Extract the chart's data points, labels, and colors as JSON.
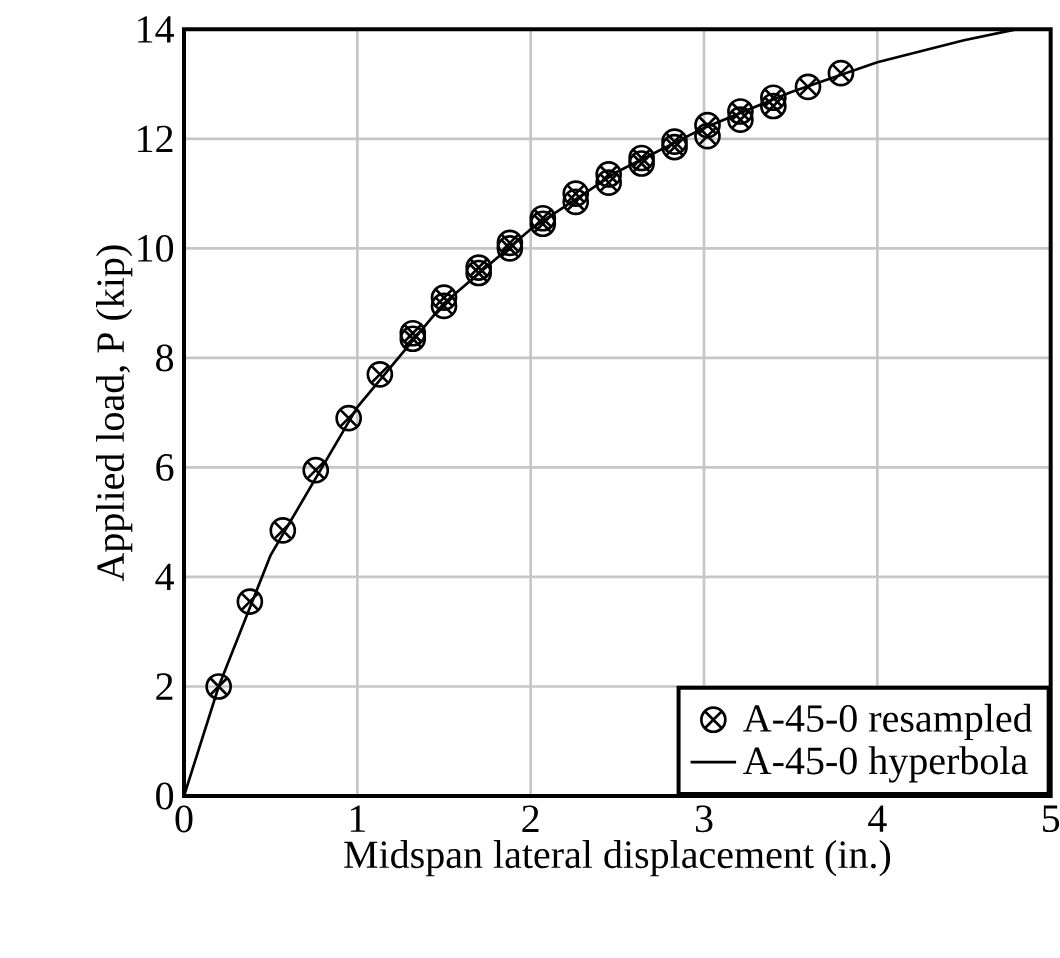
{
  "chart_data": {
    "type": "line",
    "xlabel": "Midspan lateral displacement (in.)",
    "ylabel": "Applied load, P (kip)",
    "xlim": [
      0,
      5
    ],
    "ylim": [
      0,
      14
    ],
    "xticks": [
      0,
      1,
      2,
      3,
      4,
      5
    ],
    "yticks": [
      0,
      2,
      4,
      6,
      8,
      10,
      12,
      14
    ],
    "grid": true,
    "legend": "bottom right",
    "series": [
      {
        "name": "A-45-0 resampled",
        "type": "scatter",
        "marker": "cross",
        "color": "#000000",
        "x": [
          0.2,
          0.38,
          0.57,
          0.76,
          0.95,
          1.13,
          1.32,
          1.32,
          1.5,
          1.5,
          1.7,
          1.7,
          1.88,
          1.88,
          2.07,
          2.07,
          2.26,
          2.26,
          2.45,
          2.45,
          2.64,
          2.64,
          2.83,
          2.83,
          3.02,
          3.02,
          3.21,
          3.21,
          3.4,
          3.4,
          3.6,
          3.79
        ],
        "values": [
          2.0,
          3.55,
          4.85,
          5.95,
          6.9,
          7.7,
          8.35,
          8.45,
          8.95,
          9.1,
          9.55,
          9.65,
          10.0,
          10.1,
          10.45,
          10.55,
          10.85,
          11.0,
          11.2,
          11.35,
          11.55,
          11.65,
          11.85,
          11.95,
          12.05,
          12.25,
          12.35,
          12.5,
          12.6,
          12.75,
          12.95,
          13.2
        ]
      },
      {
        "name": "A-45-0 hyperbola",
        "marker": "none",
        "line_style": "solid",
        "color": "#000000",
        "x": [
          0,
          0.2,
          0.5,
          1,
          1.5,
          2,
          2.5,
          3,
          3.5,
          4,
          4.5,
          4.8
        ],
        "values": [
          0,
          2.0,
          4.4,
          7.1,
          9.0,
          10.35,
          11.4,
          12.2,
          12.85,
          13.4,
          13.8,
          14.0
        ]
      }
    ]
  }
}
